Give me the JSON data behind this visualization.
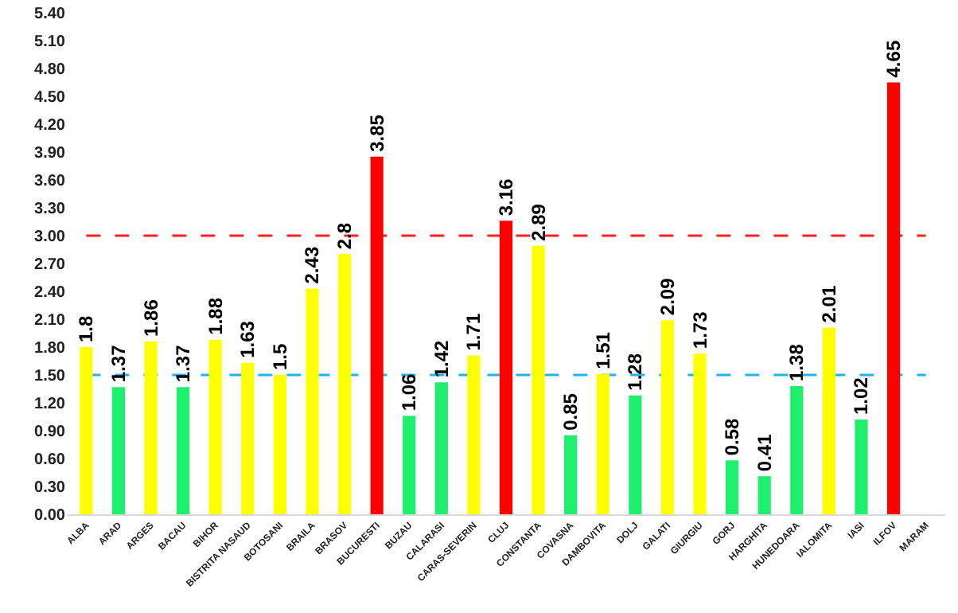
{
  "chart_data": {
    "type": "bar",
    "categories": [
      "ALBA",
      "ARAD",
      "ARGES",
      "BACAU",
      "BIHOR",
      "BISTRITA NASAUD",
      "BOTOSANI",
      "BRAILA",
      "BRASOV",
      "BUCURESTI",
      "BUZAU",
      "CALARASI",
      "CARAS-SEVERIN",
      "CLUJ",
      "CONSTANTA",
      "COVASNA",
      "DAMBOVITA",
      "DOLJ",
      "GALATI",
      "GIURGIU",
      "GORJ",
      "HARGHITA",
      "HUNEDOARA",
      "IALOMITA",
      "IASI",
      "ILFOV",
      "MARAM"
    ],
    "values": [
      1.8,
      1.37,
      1.86,
      1.37,
      1.88,
      1.63,
      1.5,
      2.43,
      2.8,
      3.85,
      1.06,
      1.42,
      1.71,
      3.16,
      2.89,
      0.85,
      1.51,
      1.28,
      2.09,
      1.73,
      0.58,
      0.41,
      1.38,
      2.01,
      1.02,
      4.65,
      null
    ],
    "colors": [
      "#ffff00",
      "#1ef06e",
      "#ffff00",
      "#1ef06e",
      "#ffff00",
      "#ffff00",
      "#ffff00",
      "#ffff00",
      "#ffff00",
      "#ff0000",
      "#1ef06e",
      "#1ef06e",
      "#ffff00",
      "#ff0000",
      "#ffff00",
      "#1ef06e",
      "#ffff00",
      "#1ef06e",
      "#ffff00",
      "#ffff00",
      "#1ef06e",
      "#1ef06e",
      "#1ef06e",
      "#ffff00",
      "#1ef06e",
      "#ff0000",
      "#ffff00"
    ],
    "ylim": [
      0,
      5.4
    ],
    "yticks": [
      {
        "value": 0,
        "label": "0.00"
      },
      {
        "value": 0.3,
        "label": "0.30"
      },
      {
        "value": 0.6,
        "label": "0.60"
      },
      {
        "value": 0.9,
        "label": "0.90"
      },
      {
        "value": 1.2,
        "label": "1.20"
      },
      {
        "value": 1.5,
        "label": "1.50"
      },
      {
        "value": 1.8,
        "label": "1.80"
      },
      {
        "value": 2.1,
        "label": "2.10"
      },
      {
        "value": 2.4,
        "label": "2.40"
      },
      {
        "value": 2.7,
        "label": "2.70"
      },
      {
        "value": 3,
        "label": "3.00"
      },
      {
        "value": 3.3,
        "label": "3.30"
      },
      {
        "value": 3.6,
        "label": "3.60"
      },
      {
        "value": 3.9,
        "label": "3.90"
      },
      {
        "value": 4.2,
        "label": "4.20"
      },
      {
        "value": 4.5,
        "label": "4.50"
      },
      {
        "value": 4.8,
        "label": "4.80"
      },
      {
        "value": 5.1,
        "label": "5.10"
      },
      {
        "value": 5.4,
        "label": "5.40"
      }
    ],
    "ref_lines": [
      {
        "axis": "y",
        "value": 3,
        "color": "#ff2020",
        "line_style": "dashed"
      },
      {
        "axis": "y",
        "value": 1.5,
        "color": "#1fb4f0",
        "line_style": "dashed"
      }
    ],
    "data_labels": true,
    "grid": false
  }
}
